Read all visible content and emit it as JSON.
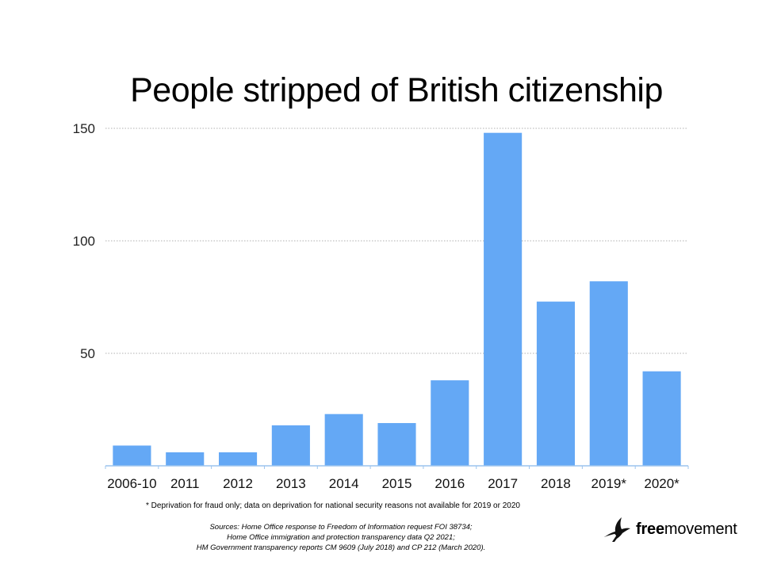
{
  "chart_data": {
    "type": "bar",
    "title": "People stripped of British citizenship",
    "categories": [
      "2006-10",
      "2011",
      "2012",
      "2013",
      "2014",
      "2015",
      "2016",
      "2017",
      "2018",
      "2019*",
      "2020*"
    ],
    "values": [
      9,
      6,
      6,
      18,
      23,
      19,
      38,
      148,
      73,
      82,
      42
    ],
    "ylim": [
      0,
      150
    ],
    "yticks": [
      50,
      100,
      150
    ],
    "xlabel": "",
    "ylabel": "",
    "grid": true,
    "bar_color": "#64a8f5",
    "grid_color": "#b0b0b0",
    "axis_color": "#9cc4ee"
  },
  "footnote": "* Deprivation for fraud only; data on deprivation for national security reasons not available for 2019 or 2020",
  "sources": [
    "Sources: Home Office response to Freedom of Information request FOI 38734;",
    "Home Office immigration and protection transparency data Q2 2021;",
    "HM Government transparency reports CM 9609 (July 2018) and CP 212 (March 2020)."
  ],
  "logo": {
    "bold": "free",
    "regular": "movement",
    "icon": "bird-icon"
  }
}
